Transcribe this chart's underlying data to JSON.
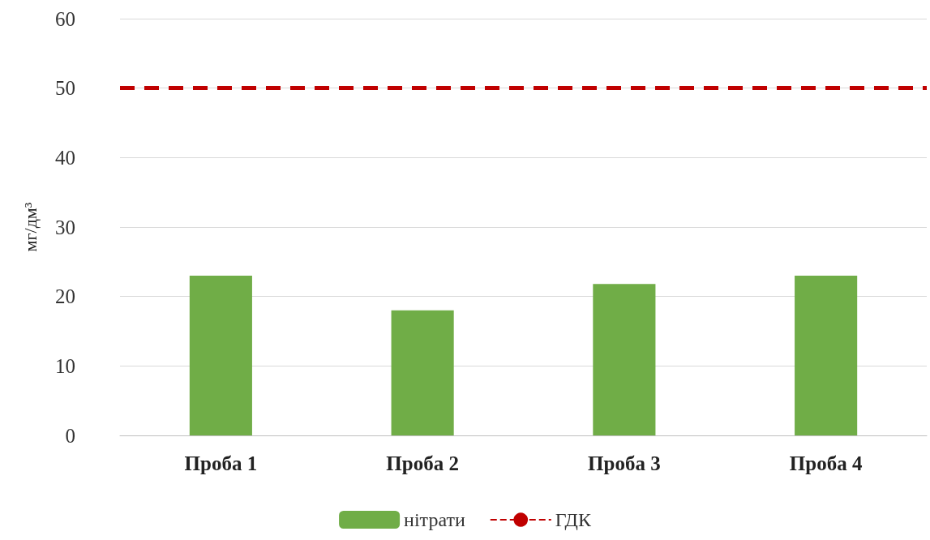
{
  "chart_data": {
    "type": "bar",
    "ylabel": "мг/дм³",
    "categories": [
      "Проба 1",
      "Проба 2",
      "Проба 3",
      "Проба 4"
    ],
    "series": [
      {
        "name": "нітрати",
        "color": "#70ad47",
        "values": [
          23,
          18,
          21.8,
          23
        ]
      }
    ],
    "ref_lines": [
      {
        "axis": "y",
        "value": 50,
        "label": "ГДК",
        "color": "#c00000",
        "line_style": "dashed"
      }
    ],
    "ylim": [
      0,
      60
    ],
    "yticks": [
      0,
      10,
      20,
      30,
      40,
      50,
      60
    ],
    "grid": "y",
    "legend": "bottom"
  }
}
